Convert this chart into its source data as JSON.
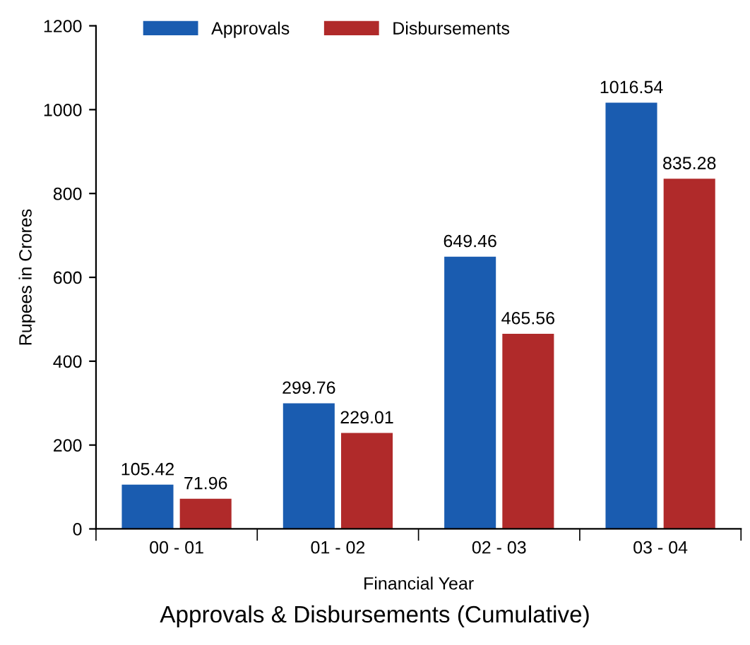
{
  "chart_data": {
    "type": "bar",
    "title": "Approvals & Disbursements (Cumulative)",
    "xlabel": "Financial Year",
    "ylabel": "Rupees in Crores",
    "categories": [
      "00 - 01",
      "01 - 02",
      "02 - 03",
      "03 - 04"
    ],
    "series": [
      {
        "name": "Approvals",
        "color": "#1a5cb0",
        "values": [
          105.42,
          299.76,
          649.46,
          1016.54
        ]
      },
      {
        "name": "Disbursements",
        "color": "#b02a2a",
        "values": [
          71.96,
          229.01,
          465.56,
          835.28
        ]
      }
    ],
    "ylim": [
      0,
      1200
    ],
    "yticks": [
      0,
      200,
      400,
      600,
      800,
      1000,
      1200
    ],
    "grid": false,
    "legend": "top left",
    "data_labels": true
  }
}
